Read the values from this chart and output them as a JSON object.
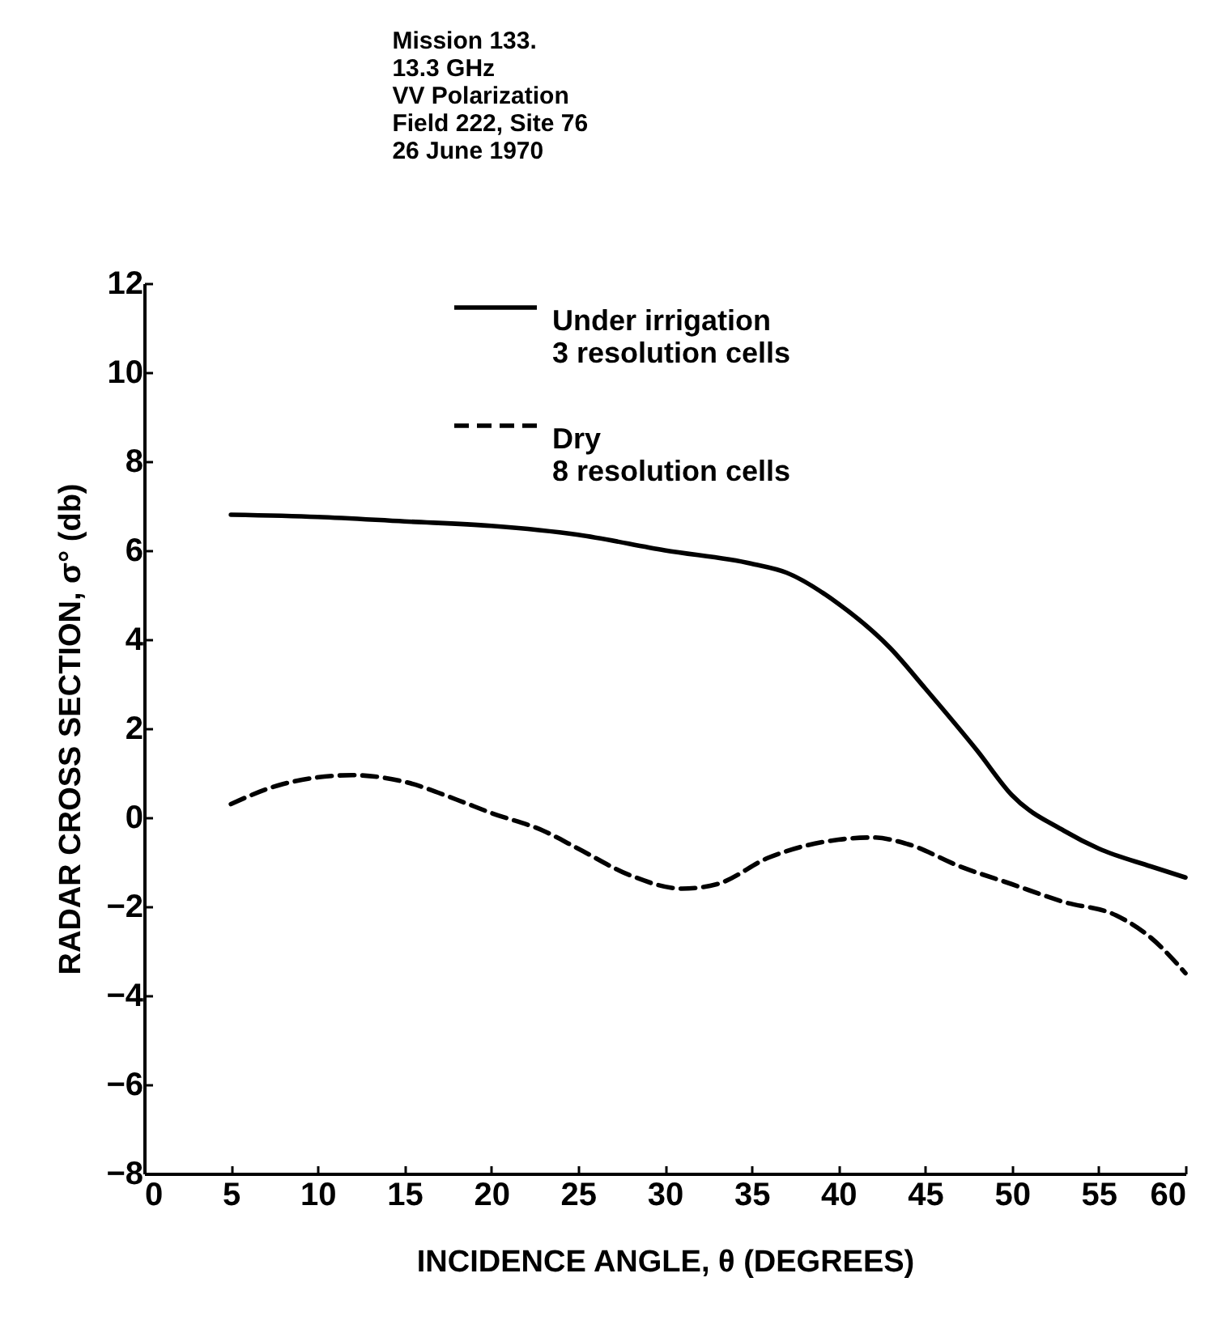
{
  "chart_data": {
    "type": "line",
    "title": "Mission 133.\n13.3 GHz\nVV Polarization\nField 222, Site 76\n26 June 1970",
    "xlabel": "INCIDENCE ANGLE, θ (DEGREES)",
    "ylabel": "RADAR CROSS SECTION, σ° (db)",
    "xlim": [
      0,
      60
    ],
    "xticks": [
      0,
      5,
      10,
      15,
      20,
      25,
      30,
      35,
      40,
      45,
      50,
      55,
      60
    ],
    "ylim": [
      -8,
      12
    ],
    "yticks": [
      -8,
      -6,
      -4,
      -2,
      0,
      2,
      4,
      6,
      8,
      10,
      12
    ],
    "grid": false,
    "legend": "top",
    "marker": "none",
    "series": [
      {
        "name": "Under irrigation\n3 resolution cells",
        "color": "#000000",
        "line_style": "solid",
        "x": [
          5,
          10,
          15,
          20,
          25,
          30,
          35,
          37,
          40,
          43,
          45,
          48,
          50,
          53,
          55,
          58,
          60
        ],
        "values": [
          6.8,
          6.75,
          6.65,
          6.55,
          6.35,
          6.0,
          5.7,
          5.5,
          4.8,
          3.8,
          2.9,
          1.5,
          0.5,
          -0.3,
          -0.7,
          -1.1,
          -1.35
        ]
      },
      {
        "name": "Dry\n8 resolution cells",
        "color": "#000000",
        "line_style": "dashed",
        "x": [
          5,
          8,
          12,
          15,
          18,
          20,
          23,
          25,
          28,
          31,
          33,
          36,
          40,
          42,
          44,
          47,
          50,
          53,
          56,
          58,
          60
        ],
        "values": [
          0.3,
          0.75,
          0.95,
          0.8,
          0.4,
          0.1,
          -0.3,
          -0.7,
          -1.3,
          -1.6,
          -1.5,
          -0.9,
          -0.5,
          -0.45,
          -0.6,
          -1.1,
          -1.5,
          -1.9,
          -2.2,
          -2.7,
          -3.5
        ]
      }
    ]
  }
}
